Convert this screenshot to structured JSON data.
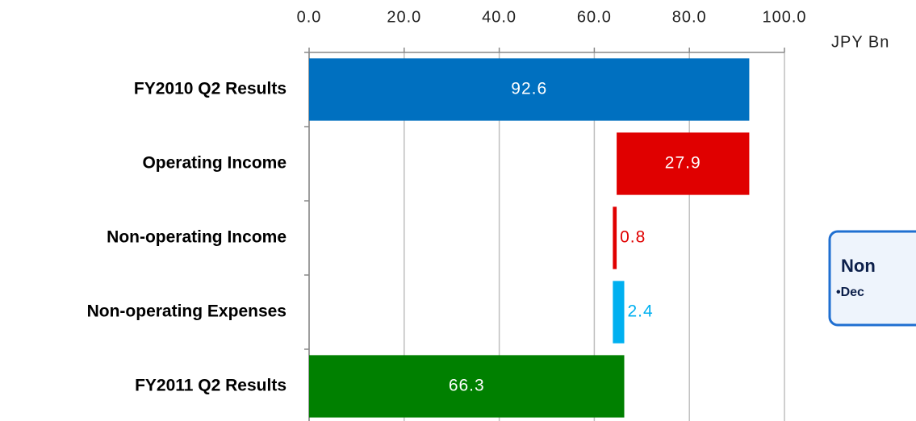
{
  "chart_data": {
    "type": "waterfall",
    "orientation": "horizontal",
    "categories": [
      "FY2010 Q2 Results",
      "Operating Income",
      "Non-operating Income",
      "Non-operating Expenses",
      "FY2011 Q2 Results"
    ],
    "values": [
      92.6,
      -27.9,
      -0.8,
      2.4,
      66.3
    ],
    "value_labels": [
      "92.6",
      "27.9",
      "0.8",
      "2.4",
      "66.3"
    ],
    "colors": [
      "#0070c0",
      "#e00000",
      "#e00000",
      "#00b0f0",
      "#008000"
    ],
    "xlim": [
      0,
      100
    ],
    "xticks": [
      {
        "value": 0,
        "label": "0.0"
      },
      {
        "value": 20,
        "label": "20.0"
      },
      {
        "value": 40,
        "label": "40.0"
      },
      {
        "value": 60,
        "label": "60.0"
      },
      {
        "value": 80,
        "label": "80.0"
      },
      {
        "value": 100,
        "label": "100.0"
      }
    ],
    "x_label": "JPY Bn",
    "grid": true,
    "annotations": [
      {
        "title": "Non",
        "text": "•Dec"
      }
    ]
  }
}
